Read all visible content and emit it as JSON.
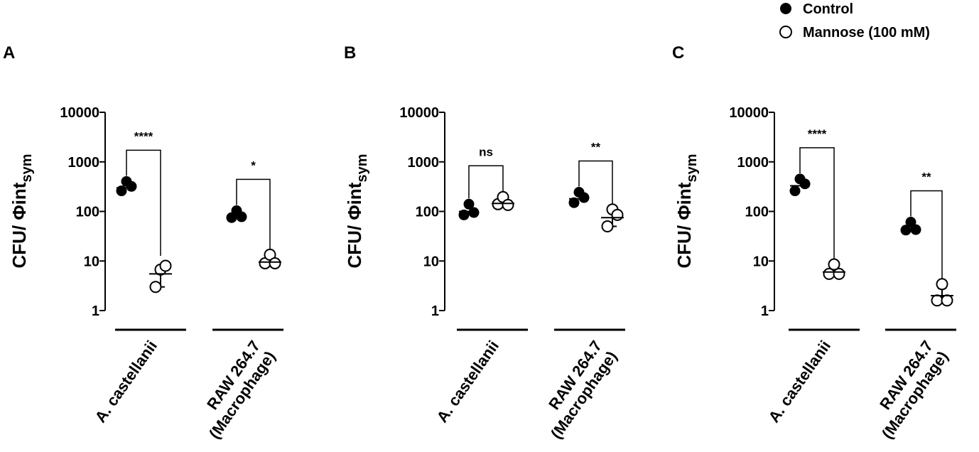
{
  "legend": {
    "entries": [
      {
        "label": "Control",
        "marker": "filled-circle"
      },
      {
        "label": "Mannose (100 mM)",
        "marker": "open-circle"
      }
    ],
    "placement": "top-right"
  },
  "colors": {
    "ink": "#000000",
    "background": "#ffffff"
  },
  "chart_data": [
    {
      "panel": "A",
      "type": "scatter",
      "yscale": "log",
      "ylim": [
        1,
        10000
      ],
      "ylabel": "CFU/ Φint",
      "ylabel_sub": "sym",
      "yticks": [
        "1",
        "10",
        "100",
        "1000",
        "10000"
      ],
      "groups": [
        {
          "label": "A. castellanii",
          "label_lines": [
            "A. castellanii"
          ],
          "control": {
            "points": [
              260,
              330,
              320
            ],
            "mean": 300
          },
          "mannose": {
            "points": [
              3,
              5.5,
              8
            ],
            "mean": 5.5,
            "err": [
              3,
              8
            ]
          },
          "significance": "****"
        },
        {
          "label": "RAW 264.7 (Macrophage)",
          "label_lines": [
            "RAW 264.7",
            "(Macrophage)"
          ],
          "control": {
            "points": [
              75,
              85,
              78
            ],
            "mean": 80
          },
          "mannose": {
            "points": [
              9,
              11,
              9
            ],
            "mean": 9.5,
            "err": [
              8.5,
              11
            ]
          },
          "significance": "*"
        }
      ]
    },
    {
      "panel": "B",
      "type": "scatter",
      "yscale": "log",
      "ylim": [
        1,
        10000
      ],
      "ylabel": "CFU/ Φint",
      "ylabel_sub": "sym",
      "yticks": [
        "1",
        "10",
        "100",
        "1000",
        "10000"
      ],
      "groups": [
        {
          "label": "A. castellanii",
          "label_lines": [
            "A. castellanii"
          ],
          "control": {
            "points": [
              85,
              115,
              95
            ],
            "mean": 100
          },
          "mannose": {
            "points": [
              140,
              160,
              135
            ],
            "mean": 145,
            "err": [
              125,
              165
            ]
          },
          "significance": "ns"
        },
        {
          "label": "RAW 264.7 (Macrophage)",
          "label_lines": [
            "RAW 264.7",
            "(Macrophage)"
          ],
          "control": {
            "points": [
              150,
              200,
              190
            ],
            "mean": 180
          },
          "mannose": {
            "points": [
              50,
              90,
              85
            ],
            "mean": 75,
            "err": [
              50,
              95
            ]
          },
          "significance": "**"
        }
      ]
    },
    {
      "panel": "C",
      "type": "scatter",
      "yscale": "log",
      "ylim": [
        1,
        10000
      ],
      "ylabel": "CFU/ Φint",
      "ylabel_sub": "sym",
      "yticks": [
        "1",
        "10",
        "100",
        "1000",
        "10000"
      ],
      "groups": [
        {
          "label": "A. castellanii",
          "label_lines": [
            "A. castellanii"
          ],
          "control": {
            "points": [
              260,
              370,
              360
            ],
            "mean": 330
          },
          "mannose": {
            "points": [
              5.5,
              7,
              5.5
            ],
            "mean": 6,
            "err": [
              5,
              7
            ]
          },
          "significance": "****"
        },
        {
          "label": "RAW 264.7 (Macrophage)",
          "label_lines": [
            "RAW 264.7",
            "(Macrophage)"
          ],
          "control": {
            "points": [
              42,
              50,
              43
            ],
            "mean": 45
          },
          "mannose": {
            "points": [
              1.6,
              2.8,
              1.6
            ],
            "mean": 2,
            "err": [
              1.4,
              2.8
            ]
          },
          "significance": "**"
        }
      ]
    }
  ]
}
